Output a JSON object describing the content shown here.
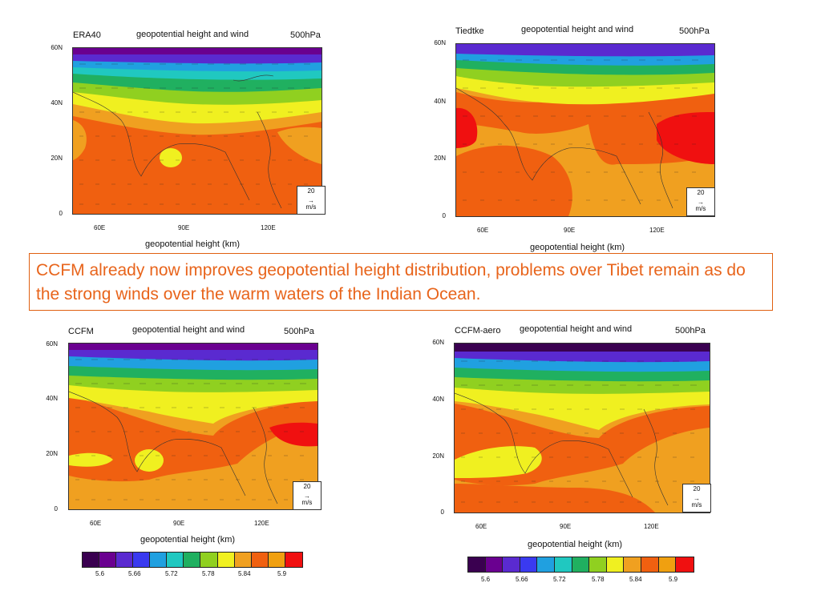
{
  "panels": [
    {
      "name": "ERA40",
      "title": "geopotential height and wind",
      "level": "500hPa",
      "xlabel": "geopotential height (km)"
    },
    {
      "name": "Tiedtke",
      "title": "geopotential height and wind",
      "level": "500hPa",
      "xlabel": "geopotential height (km)"
    },
    {
      "name": "CCFM",
      "title": "geopotential height and wind",
      "level": "500hPa",
      "xlabel": "geopotential height (km)"
    },
    {
      "name": "CCFM-aero",
      "title": "geopotential height and wind",
      "level": "500hPa",
      "xlabel": "geopotential height (km)"
    }
  ],
  "axes": {
    "y_ticks": [
      "60N",
      "40N",
      "20N",
      "0"
    ],
    "x_ticks": [
      "60E",
      "90E",
      "120E"
    ]
  },
  "reference_vector": {
    "value": "20",
    "unit": "m/s"
  },
  "callout": "CCFM already now improves geopotential height distribution, problems over Tibet remain as do the strong winds over the warm waters of the Indian Ocean.",
  "colorbar": {
    "colors": [
      "#3a0050",
      "#6a0090",
      "#5a2ad0",
      "#3a3af0",
      "#20a0e0",
      "#20c8c0",
      "#20b060",
      "#90d020",
      "#f0f020",
      "#f0a020",
      "#f06010",
      "#f0a010",
      "#f01010"
    ],
    "labels": [
      "5.6",
      "5.66",
      "5.72",
      "5.78",
      "5.84",
      "5.9"
    ]
  }
}
